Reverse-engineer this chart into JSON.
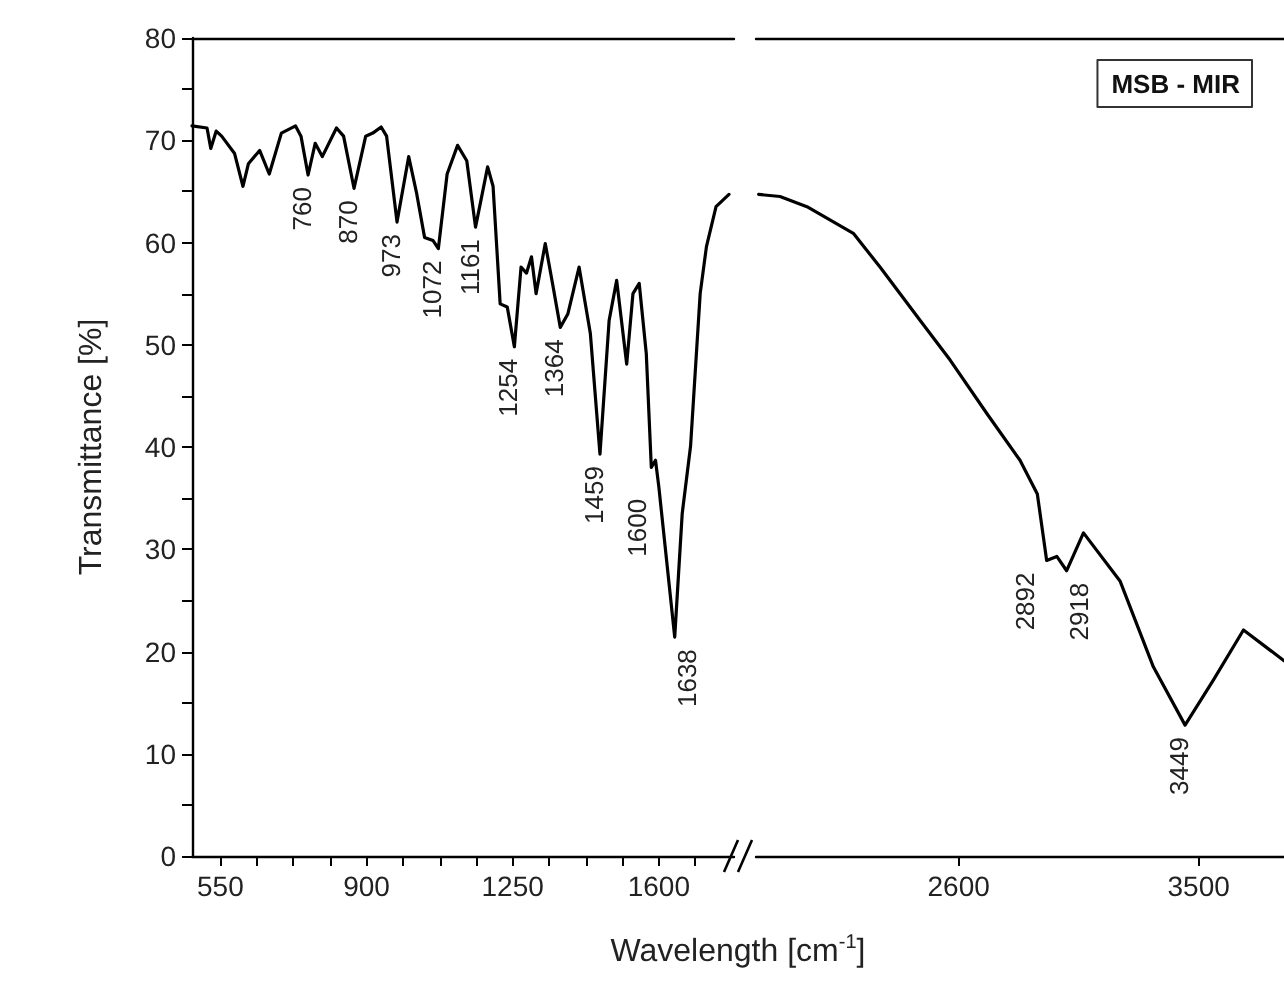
{
  "chart_data": [
    {
      "type": "line",
      "ylabel": "Transmittance [%]",
      "xlabel": "Wavelength [cm$^{-1}$]",
      "xlim": [
        482,
        1780
      ],
      "xticks": [
        550,
        {
          "value": 637.5,
          "label": null
        },
        {
          "value": 725,
          "label": null
        },
        {
          "value": 812.5,
          "label": null
        },
        900,
        {
          "value": 987.5,
          "label": null
        },
        {
          "value": 1075,
          "label": null
        },
        {
          "value": 1162.5,
          "label": null
        },
        1250,
        {
          "value": 1337.5,
          "label": null
        },
        {
          "value": 1425,
          "label": null
        },
        {
          "value": 1512.5,
          "label": null
        },
        1600,
        {
          "value": 1687.5,
          "label": null
        }
      ],
      "ylim": [
        0,
        80
      ],
      "yticks": [
        0,
        {
          "value": 5,
          "label": null
        },
        10,
        {
          "value": 15,
          "label": null
        },
        20,
        {
          "value": 25,
          "label": null
        },
        30,
        {
          "value": 35,
          "label": null
        },
        40,
        {
          "value": 45,
          "label": null
        },
        50,
        {
          "value": 55,
          "label": null
        },
        60,
        {
          "value": 65,
          "label": null
        },
        70,
        {
          "value": 75,
          "label": null
        },
        80
      ],
      "series": [
        {
          "color": "#000000",
          "x": [
            482,
            518,
            527,
            540,
            553,
            584,
            604,
            617,
            644,
            667,
            696,
            730,
            743,
            760,
            777,
            794,
            828,
            845,
            870,
            898,
            915,
            935,
            948,
            973,
            1001,
            1020,
            1039,
            1059,
            1072,
            1093,
            1118,
            1140,
            1161,
            1190,
            1203,
            1220,
            1237,
            1254,
            1270,
            1283,
            1295,
            1306,
            1328,
            1344,
            1364,
            1382,
            1409,
            1436,
            1459,
            1481,
            1499,
            1523,
            1538,
            1553,
            1570,
            1582,
            1592,
            1600,
            1638,
            1656,
            1676,
            1699,
            1714,
            1737,
            1768
          ],
          "values": [
            71.4,
            71.2,
            69.2,
            70.9,
            70.4,
            68.7,
            65.5,
            67.7,
            69.0,
            66.7,
            70.7,
            71.4,
            70.4,
            66.6,
            69.7,
            68.4,
            71.2,
            70.4,
            65.3,
            70.4,
            70.7,
            71.3,
            70.4,
            62.0,
            68.4,
            64.8,
            60.5,
            60.2,
            59.4,
            66.7,
            69.5,
            68.0,
            61.5,
            67.4,
            65.5,
            54.0,
            53.7,
            49.8,
            57.6,
            57.0,
            58.6,
            55.0,
            59.9,
            56.3,
            51.7,
            53.0,
            57.6,
            51.1,
            39.3,
            52.4,
            56.3,
            48.1,
            55.0,
            56.0,
            49.1,
            38.0,
            38.7,
            36.1,
            21.4,
            33.5,
            40.1,
            55.0,
            59.6,
            63.5,
            64.7
          ]
        }
      ],
      "annotations": [
        {
          "text": "760",
          "x": 760,
          "y": 66.6
        },
        {
          "text": "870",
          "x": 870,
          "y": 65.3
        },
        {
          "text": "973",
          "x": 973,
          "y": 62.0
        },
        {
          "text": "1072",
          "x": 1072,
          "y": 59.4
        },
        {
          "text": "1161",
          "x": 1161,
          "y": 61.5
        },
        {
          "text": "1254",
          "x": 1254,
          "y": 49.8
        },
        {
          "text": "1364",
          "x": 1364,
          "y": 51.7
        },
        {
          "text": "1459",
          "x": 1459,
          "y": 39.3
        },
        {
          "text": "1600",
          "x": 1600,
          "y": 36.1
        },
        {
          "text": "1638",
          "x": 1638,
          "y": 21.4
        }
      ]
    },
    {
      "type": "line",
      "legend": "top right",
      "tick_labels": "x",
      "xlim": [
        1840,
        3820
      ],
      "xticks": [
        2600,
        3500
      ],
      "ylim": [
        0,
        80
      ],
      "series": [
        {
          "name": "MSB - MIR",
          "color": "#000000",
          "x": [
            1850,
            1930,
            2031,
            2205,
            2305,
            2455,
            2568,
            2705,
            2830,
            2895,
            2930,
            2968,
            3005,
            3068,
            3205,
            3330,
            3449,
            3555,
            3668,
            3820
          ],
          "values": [
            64.7,
            64.5,
            63.5,
            60.9,
            57.6,
            52.4,
            48.5,
            43.3,
            38.7,
            35.4,
            28.9,
            29.3,
            27.9,
            31.6,
            26.9,
            18.5,
            12.8,
            17.2,
            22.1,
            19.1
          ]
        }
      ],
      "annotations": [
        {
          "text": "2892",
          "x": 2930,
          "y": 28.9
        },
        {
          "text": "2918",
          "x": 3005,
          "y": 27.9
        },
        {
          "text": "3449",
          "x": 3449,
          "y": 12.8
        }
      ]
    }
  ]
}
